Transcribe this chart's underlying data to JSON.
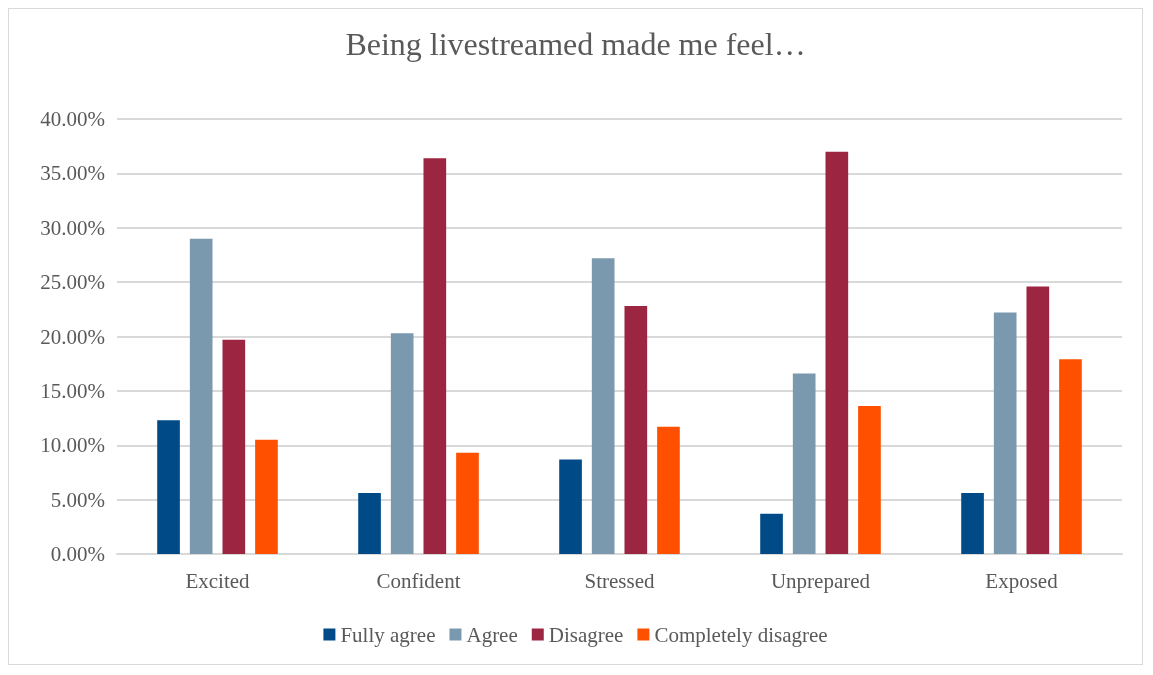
{
  "chart_data": {
    "type": "bar",
    "title": "Being livestreamed made me feel…",
    "categories": [
      "Excited",
      "Confident",
      "Stressed",
      "Unprepared",
      "Exposed"
    ],
    "series": [
      {
        "name": "Fully agree",
        "color": "#004b87",
        "values": [
          12.3,
          5.6,
          8.7,
          3.7,
          5.6
        ]
      },
      {
        "name": "Agree",
        "color": "#7b99ae",
        "values": [
          29.0,
          20.3,
          27.2,
          16.6,
          22.2
        ]
      },
      {
        "name": "Disagree",
        "color": "#9c2541",
        "values": [
          19.7,
          36.4,
          22.8,
          37.0,
          24.6
        ]
      },
      {
        "name": "Completely disagree",
        "color": "#ff5000",
        "values": [
          10.5,
          9.3,
          11.7,
          13.6,
          17.9
        ]
      }
    ],
    "ylim": [
      0,
      40
    ],
    "yticks": [
      {
        "value": 0,
        "label": "0.00%"
      },
      {
        "value": 5,
        "label": "5.00%"
      },
      {
        "value": 10,
        "label": "10.00%"
      },
      {
        "value": 15,
        "label": "15.00%"
      },
      {
        "value": 20,
        "label": "20.00%"
      },
      {
        "value": 25,
        "label": "25.00%"
      },
      {
        "value": 30,
        "label": "30.00%"
      },
      {
        "value": 35,
        "label": "35.00%"
      },
      {
        "value": 40,
        "label": "40.00%"
      }
    ],
    "grid": "y",
    "legend": "bottom"
  }
}
